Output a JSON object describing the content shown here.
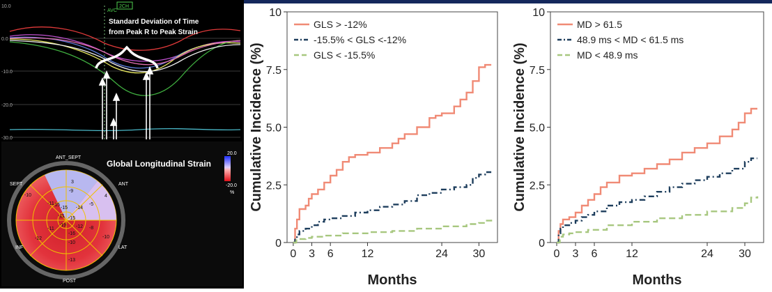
{
  "echo": {
    "strain_plot": {
      "y_ticks": [
        "10.0",
        "0.0",
        "-10.0",
        "-20.0",
        "-30.0"
      ],
      "badge": "2CH",
      "avc_label": "AVC",
      "annotation_line1": "Standard Deviation of Time",
      "annotation_line2": "from Peak R to Peak Strain"
    },
    "bullseye": {
      "title": "Global Longitudinal Strain",
      "scale_max": "20.0",
      "scale_min": "-20.0",
      "scale_unit": "%",
      "labels": {
        "ant_sept": "ANT_SEPT",
        "ant": "ANT",
        "sept": "SEPT",
        "inf": "INF",
        "lat": "LAT",
        "post": "POST"
      },
      "values": {
        "outer": [
          "3",
          "4",
          "-10",
          "-13",
          "-12",
          "-10"
        ],
        "mid": [
          "-9",
          "-5",
          "-8",
          "-10",
          "-11",
          "-11"
        ],
        "apical": [
          "-15",
          "-14",
          "-12",
          "-11"
        ],
        "apex": [
          "-19",
          "-15",
          "-16",
          "-15"
        ]
      }
    }
  },
  "chart_data": [
    {
      "type": "line",
      "step": true,
      "xlabel": "Months",
      "ylabel": "Cumulative Incidence (%)",
      "xticks": [
        0,
        3,
        6,
        12,
        24,
        30
      ],
      "xtick_labels": [
        "0",
        "3",
        "6",
        "12",
        "24",
        "30"
      ],
      "yticks": [
        0,
        2.5,
        5.0,
        7.5,
        10
      ],
      "ytick_labels": [
        "0",
        "2.5",
        "5.0",
        "7.5",
        "10"
      ],
      "xlim": [
        -1,
        33
      ],
      "ylim": [
        0,
        10
      ],
      "legend_position": "top-left",
      "series": [
        {
          "name": "GLS > -12%",
          "color": "#f08a75",
          "dash": "solid",
          "x": [
            0,
            0.3,
            0.6,
            1,
            2,
            2.5,
            3,
            4,
            5,
            6,
            7,
            8,
            9,
            10,
            12,
            14,
            16,
            17,
            18,
            20,
            22,
            23,
            24,
            26,
            27,
            28,
            29,
            30,
            31,
            32
          ],
          "y": [
            0,
            0.6,
            1.0,
            1.45,
            1.6,
            1.9,
            2.1,
            2.3,
            2.6,
            2.9,
            3.15,
            3.5,
            3.7,
            3.8,
            3.9,
            4.1,
            4.3,
            4.5,
            4.7,
            5.0,
            5.4,
            5.5,
            5.6,
            5.9,
            6.2,
            6.5,
            7.0,
            7.6,
            7.7,
            7.7
          ]
        },
        {
          "name": "-15.5% < GLS <-12%",
          "color": "#1d3d5c",
          "dash": "dashdot",
          "x": [
            0,
            0.3,
            0.6,
            1,
            2,
            3,
            4,
            5,
            6,
            8,
            10,
            12,
            14,
            16,
            18,
            20,
            22,
            24,
            26,
            28,
            29,
            30,
            31,
            32
          ],
          "y": [
            0,
            0.2,
            0.35,
            0.5,
            0.6,
            0.75,
            0.9,
            1.0,
            1.05,
            1.15,
            1.3,
            1.4,
            1.55,
            1.65,
            1.8,
            2.05,
            2.15,
            2.3,
            2.4,
            2.5,
            2.8,
            2.95,
            3.05,
            3.05
          ]
        },
        {
          "name": "GLS < -15.5%",
          "color": "#a7c77f",
          "dash": "dash",
          "x": [
            0,
            0.5,
            1,
            2,
            3,
            5,
            8,
            12,
            16,
            20,
            24,
            28,
            30,
            31,
            32
          ],
          "y": [
            0,
            0.1,
            0.15,
            0.2,
            0.25,
            0.3,
            0.4,
            0.45,
            0.5,
            0.6,
            0.7,
            0.8,
            0.85,
            0.95,
            1.0
          ]
        }
      ]
    },
    {
      "type": "line",
      "step": true,
      "xlabel": "Months",
      "ylabel": "Cumulative Incidence (%)",
      "xticks": [
        0,
        3,
        6,
        12,
        24,
        30
      ],
      "xtick_labels": [
        "0",
        "3",
        "6",
        "12",
        "24",
        "30"
      ],
      "yticks": [
        0,
        2.5,
        5.0,
        7.5,
        10
      ],
      "ytick_labels": [
        "0",
        "2.5",
        "5.0",
        "7.5",
        "10"
      ],
      "xlim": [
        -1,
        33
      ],
      "ylim": [
        0,
        10
      ],
      "legend_position": "top-left",
      "series": [
        {
          "name": "MD > 61.5",
          "color": "#f08a75",
          "dash": "solid",
          "x": [
            0,
            0.3,
            0.6,
            1,
            2,
            3,
            4,
            5,
            6,
            7,
            8,
            10,
            12,
            14,
            16,
            18,
            20,
            22,
            24,
            26,
            28,
            29,
            30,
            31,
            32
          ],
          "y": [
            0,
            0.5,
            0.8,
            1.0,
            1.1,
            1.3,
            1.6,
            1.85,
            2.1,
            2.4,
            2.6,
            2.9,
            3.0,
            3.2,
            3.4,
            3.6,
            3.9,
            4.1,
            4.3,
            4.6,
            4.9,
            5.2,
            5.6,
            5.8,
            5.8
          ]
        },
        {
          "name": "48.9 ms < MD < 61.5 ms",
          "color": "#1d3d5c",
          "dash": "dashdot",
          "x": [
            0,
            0.3,
            0.6,
            1,
            2,
            3,
            4,
            5,
            6,
            8,
            10,
            12,
            14,
            16,
            18,
            20,
            22,
            24,
            26,
            28,
            30,
            31,
            32
          ],
          "y": [
            0,
            0.4,
            0.6,
            0.75,
            0.85,
            0.95,
            1.1,
            1.2,
            1.35,
            1.6,
            1.75,
            1.85,
            2.0,
            2.2,
            2.4,
            2.55,
            2.7,
            2.85,
            3.0,
            3.2,
            3.5,
            3.65,
            3.65
          ]
        },
        {
          "name": "MD < 48.9 ms",
          "color": "#a7c77f",
          "dash": "dash",
          "x": [
            0,
            0.5,
            1,
            2,
            3,
            5,
            8,
            12,
            16,
            20,
            24,
            28,
            30,
            31,
            32
          ],
          "y": [
            0,
            0.25,
            0.35,
            0.4,
            0.45,
            0.55,
            0.75,
            0.9,
            1.05,
            1.2,
            1.35,
            1.5,
            1.7,
            1.95,
            2.0
          ]
        }
      ]
    }
  ]
}
